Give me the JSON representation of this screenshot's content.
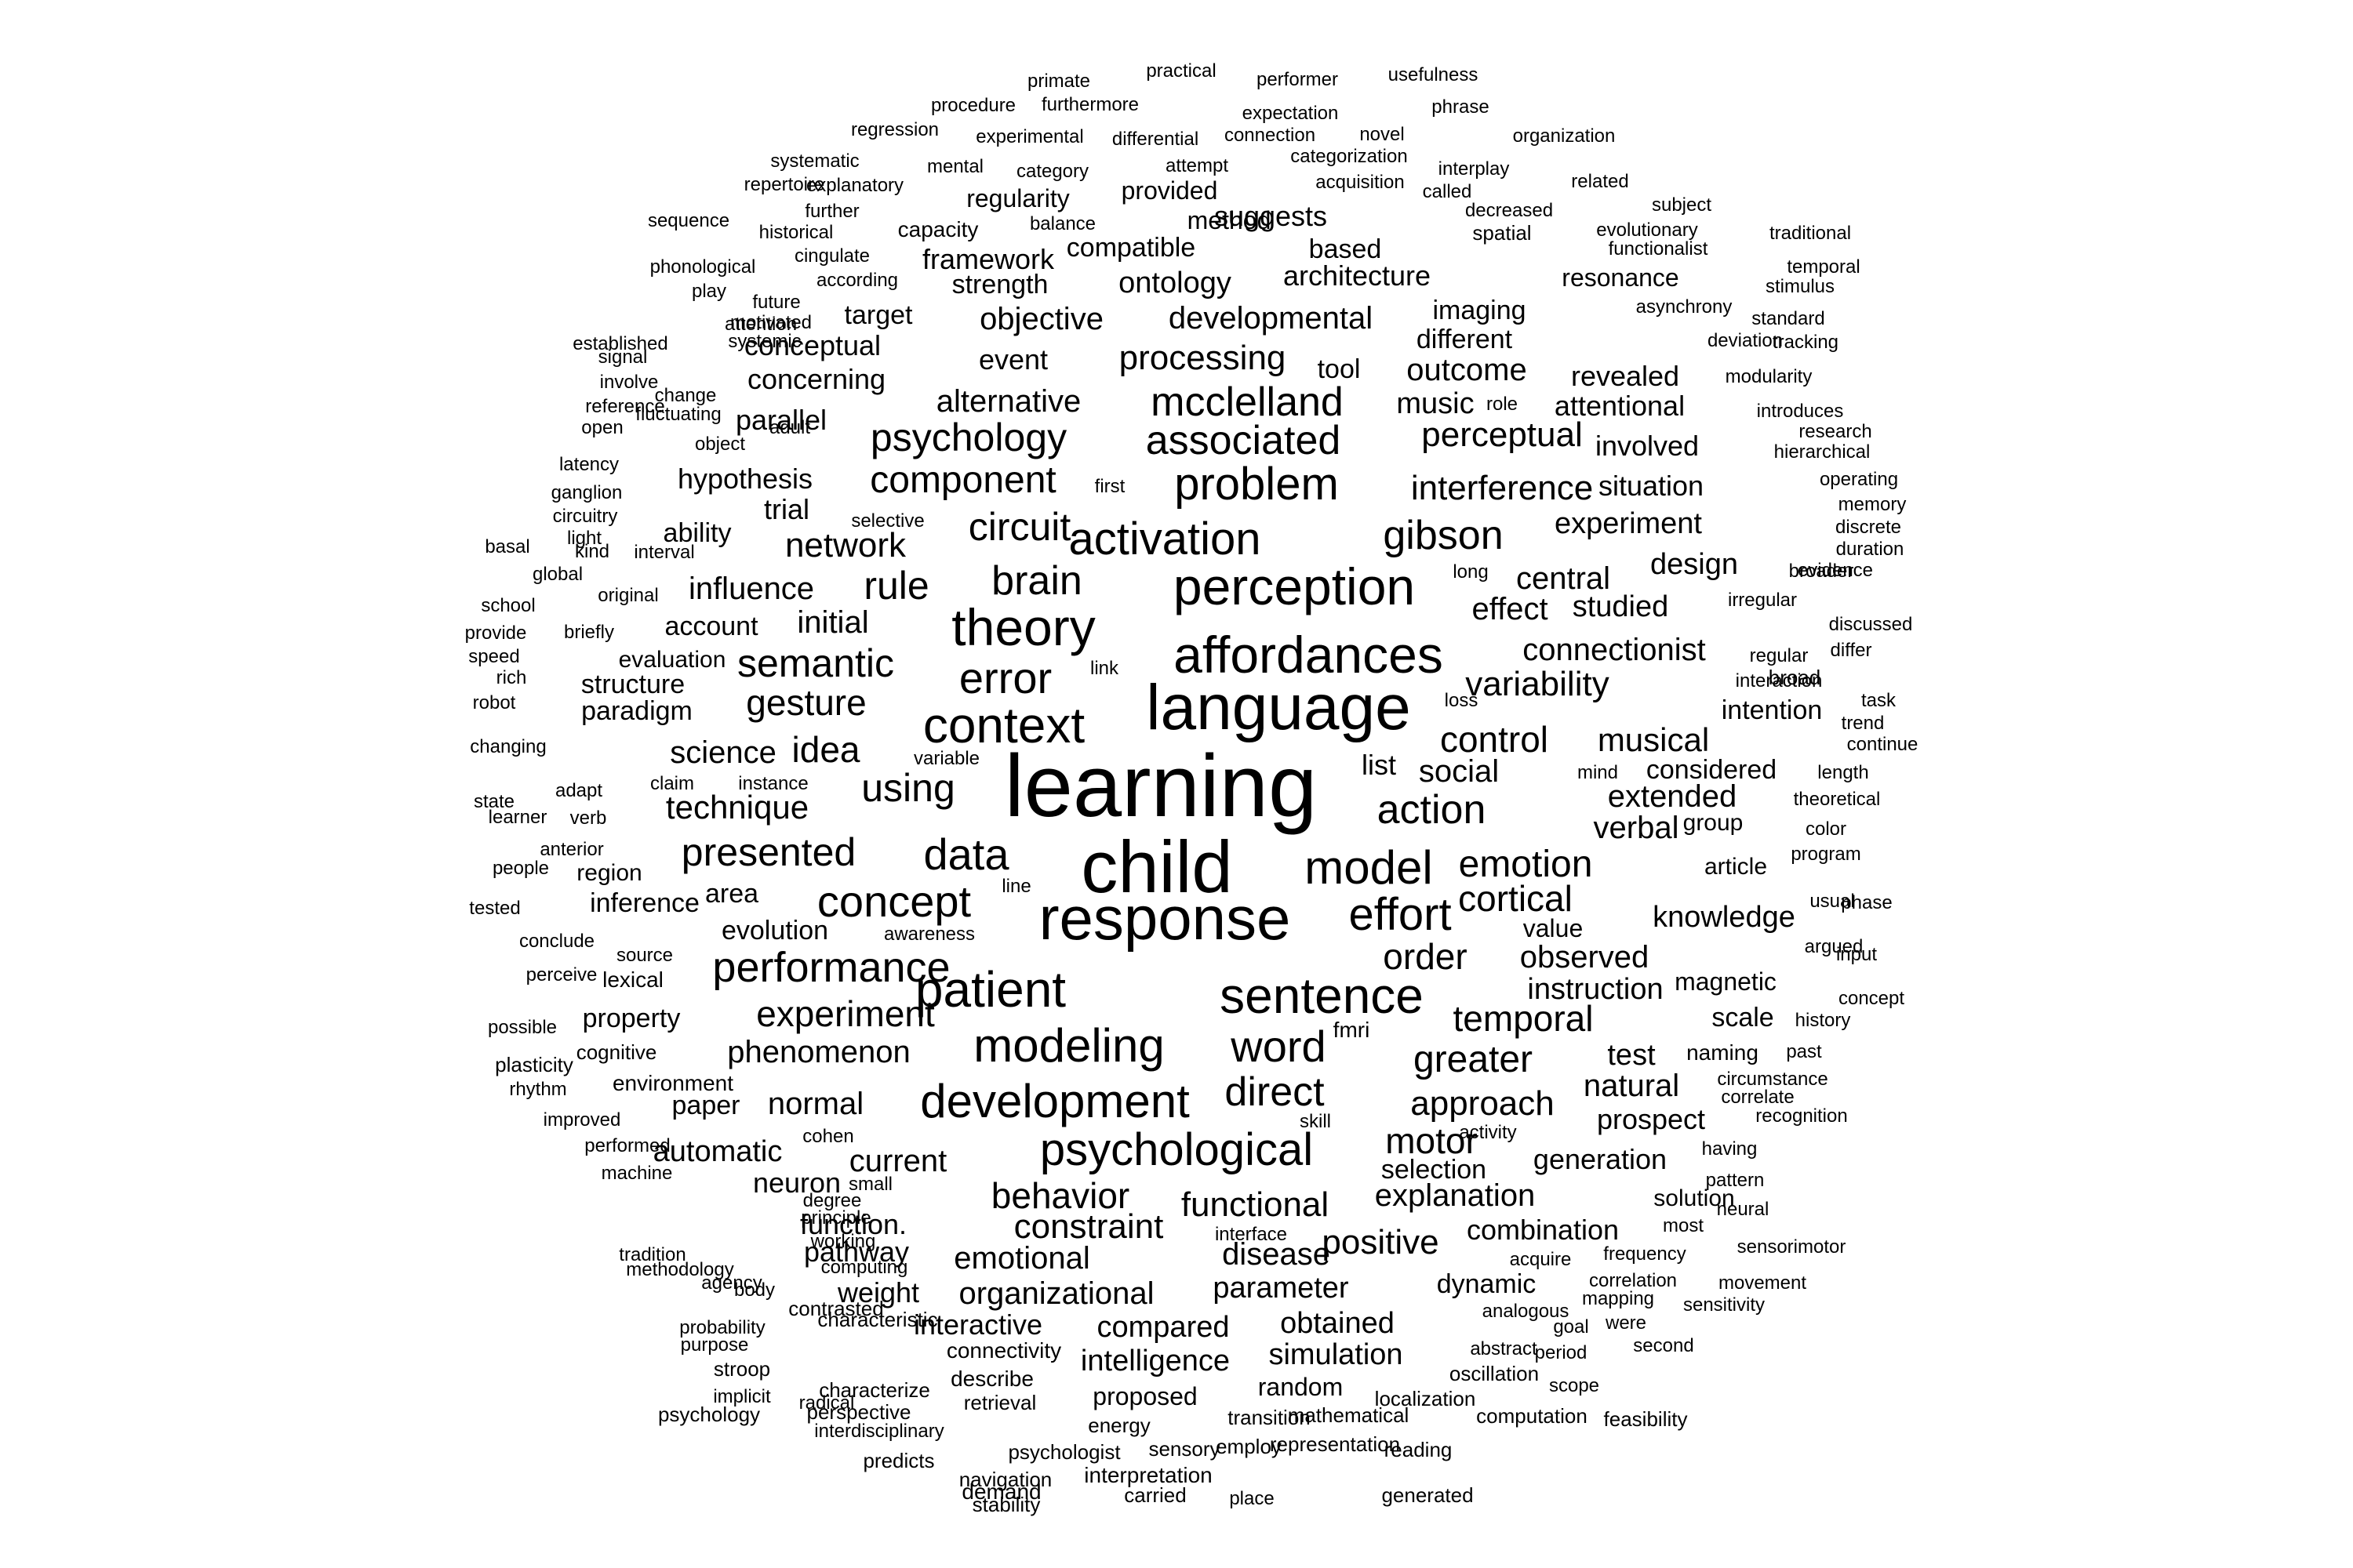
{
  "text_color": "#000000",
  "background_color": "#ffffff",
  "words": [
    "learning",
    "child",
    "language",
    "response",
    "affordances",
    "perception",
    "context",
    "theory",
    "patient",
    "sentence",
    "model",
    "modeling",
    "development",
    "psychological",
    "data",
    "activation",
    "problem",
    "associated",
    "mcclelland",
    "effort",
    "concept",
    "word",
    "error",
    "performance",
    "gibson",
    "brain",
    "circuit",
    "psychology",
    "rule",
    "semantic",
    "direct",
    "action",
    "control",
    "emotion",
    "using",
    "idea",
    "gesture",
    "component",
    "temporal",
    "greater",
    "interference",
    "order",
    "experiment",
    "variability",
    "presented",
    "cortical",
    "motor",
    "perceptual",
    "outcome",
    "processing",
    "connectionist",
    "social",
    "observed",
    "functional",
    "behavior",
    "approach",
    "explanation",
    "network",
    "technique",
    "constraint",
    "disease",
    "phenomenon",
    "organizational",
    "initial",
    "science",
    "influence",
    "musical",
    "positive",
    "emotional",
    "instruction",
    "natural",
    "verbal",
    "effect",
    "central",
    "developmental",
    "objective",
    "alternative",
    "experiment",
    "studied",
    "extended",
    "current",
    "normal",
    "automatic",
    "prospect",
    "test",
    "knowledge",
    "generation",
    "selection",
    "interactive",
    "compared",
    "obtained",
    "simulation",
    "intelligence",
    "parameter",
    "combination",
    "dynamic",
    "weight",
    "pathway",
    "neuron",
    "function.",
    "design",
    "situation",
    "involved",
    "attentional",
    "revealed",
    "music",
    "different",
    "imaging",
    "tool",
    "event",
    "ontology",
    "framework",
    "strength",
    "compatible",
    "architecture",
    "resonance",
    "method",
    "suggests",
    "based",
    "regularity",
    "provided",
    "parallel",
    "trial",
    "hypothesis",
    "concerning",
    "conceptual",
    "target",
    "ability",
    "account",
    "evaluation",
    "structure",
    "paradigm",
    "list",
    "group",
    "considered",
    "intention",
    "article",
    "value",
    "scale",
    "fmri",
    "magnetic",
    "naming",
    "paper",
    "property",
    "environment",
    "area",
    "region",
    "evolution",
    "inference",
    "solution",
    "capacity",
    "proposed",
    "random",
    "describe",
    "connectivity",
    "interpretation",
    "demand",
    "characterize",
    "perspective",
    "localization",
    "oscillation",
    "computation",
    "feasibility",
    "mathematical",
    "reading",
    "transition",
    "representation",
    "employ",
    "place",
    "carried",
    "generated",
    "navigation",
    "stability",
    "sensory",
    "psychologist",
    "predicts",
    "retrieval",
    "energy",
    "interdisciplinary",
    "radical",
    "characteristic",
    "psychology",
    "stroop",
    "implicit",
    "probability",
    "purpose",
    "contrasted",
    "computing",
    "working",
    "principle",
    "degree",
    "body",
    "agency",
    "methodology",
    "tradition",
    "machine",
    "performed",
    "improved",
    "rhythm",
    "plasticity",
    "cognitive",
    "possible",
    "perceive",
    "conclude",
    "tested",
    "people",
    "lexical",
    "source",
    "awareness",
    "line",
    "skill",
    "activity",
    "having",
    "pattern",
    "neural",
    "most",
    "sensorimotor",
    "frequency",
    "acquire",
    "correlation",
    "mapping",
    "sensitivity",
    "movement",
    "goal",
    "were",
    "analogous",
    "abstract",
    "period",
    "second",
    "scope",
    "correlate",
    "recognition",
    "circumstance",
    "history",
    "past",
    "concept",
    "input",
    "argued",
    "usual",
    "phase",
    "program",
    "color",
    "theoretical",
    "length",
    "continue",
    "differ",
    "discussed",
    "trend",
    "task",
    "regular",
    "broad",
    "interaction",
    "irregular",
    "evidence",
    "broader",
    "duration",
    "discrete",
    "memory",
    "operating",
    "research",
    "hierarchical",
    "introduces",
    "modularity",
    "tracking",
    "standard",
    "deviation",
    "asynchrony",
    "stimulus",
    "temporal",
    "traditional",
    "functionalist",
    "evolutionary",
    "subject",
    "related",
    "spatial",
    "decreased",
    "called",
    "interplay",
    "organization",
    "phrase",
    "usefulness",
    "performer",
    "practical",
    "primate",
    "procedure",
    "furthermore",
    "expectation",
    "regression",
    "experimental",
    "differential",
    "connection",
    "novel",
    "categorization",
    "attempt",
    "category",
    "mental",
    "systematic",
    "explanatory",
    "repertoire",
    "acquisition",
    "further",
    "historical",
    "sequence",
    "balance",
    "cingulate",
    "phonological",
    "according",
    "play",
    "future",
    "motivated",
    "attention",
    "established",
    "systemic",
    "signal",
    "involve",
    "change",
    "reference",
    "fluctuating",
    "adult",
    "open",
    "object",
    "latency",
    "ganglion",
    "circuitry",
    "light",
    "first",
    "selective",
    "basal",
    "kind",
    "interval",
    "global",
    "original",
    "school",
    "briefly",
    "provide",
    "link",
    "speed",
    "rich",
    "robot",
    "changing",
    "claim",
    "instance",
    "variable",
    "adapt",
    "state",
    "learner",
    "verb",
    "anterior",
    "role",
    "long",
    "loss",
    "mind",
    "cohen",
    "small",
    "interface"
  ]
}
